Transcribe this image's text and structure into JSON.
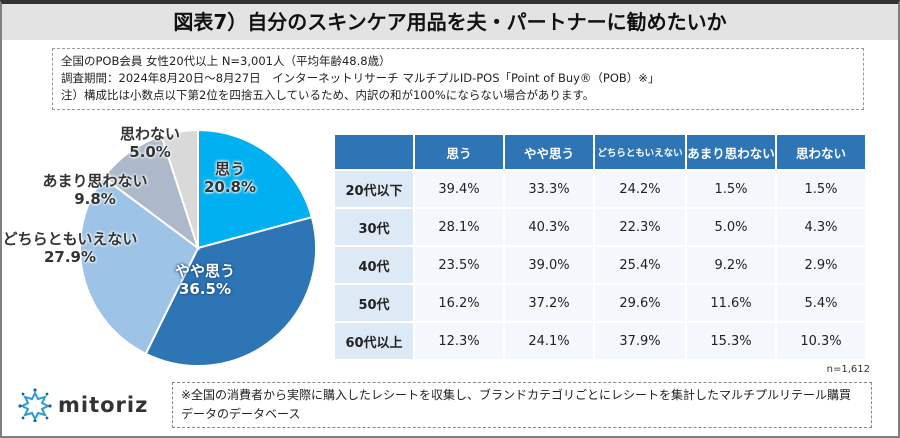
{
  "title": "図表7）自分のスキンケア用品を夫・パートナーに勧めたいか",
  "notes": [
    "全国のPOB会員 女性20代以上 N=3,001人（平均年齢48.8歳）",
    "調査期間：2024年8月20日～8月27日　インターネットリサーチ マルチプルID-POS「Point of Buy®（POB）※」",
    "注）構成比は小数点以下第2位を四捨五入しているため、内訳の和が100%にならない場合があります。"
  ],
  "chart_data": [
    {
      "type": "pie",
      "categories": [
        "思う",
        "やや思う",
        "どちらともいえない",
        "あまり思わない",
        "思わない"
      ],
      "values": [
        20.8,
        36.5,
        27.9,
        9.8,
        5.0
      ],
      "value_labels": [
        "20.8%",
        "36.5%",
        "27.9%",
        "9.8%",
        "5.0%"
      ],
      "colors": [
        "#00b0f0",
        "#2e75b6",
        "#9dc3e6",
        "#adb9ca",
        "#d9d9d9"
      ],
      "start": "12 o'clock, clockwise"
    },
    {
      "type": "table",
      "columns": [
        "",
        "思う",
        "やや思う",
        "どちらともいえない",
        "あまり思わない",
        "思わない"
      ],
      "rows": [
        [
          "20代以下",
          "39.4%",
          "33.3%",
          "24.2%",
          "1.5%",
          "1.5%"
        ],
        [
          "30代",
          "28.1%",
          "40.3%",
          "22.3%",
          "5.0%",
          "4.3%"
        ],
        [
          "40代",
          "23.5%",
          "39.0%",
          "25.4%",
          "9.2%",
          "2.9%"
        ],
        [
          "50代",
          "16.2%",
          "37.2%",
          "29.6%",
          "11.6%",
          "5.4%"
        ],
        [
          "60代以上",
          "12.3%",
          "24.1%",
          "37.9%",
          "15.3%",
          "10.3%"
        ]
      ],
      "header_color": "#2e75b6"
    }
  ],
  "n_label": "n=1,612",
  "logo": "mitoriz",
  "footnote": "※全国の消費者から実際に購入したレシートを収集し、ブランドカテゴリごとにレシートを集計したマルチプルリテール購買データのデータベース"
}
